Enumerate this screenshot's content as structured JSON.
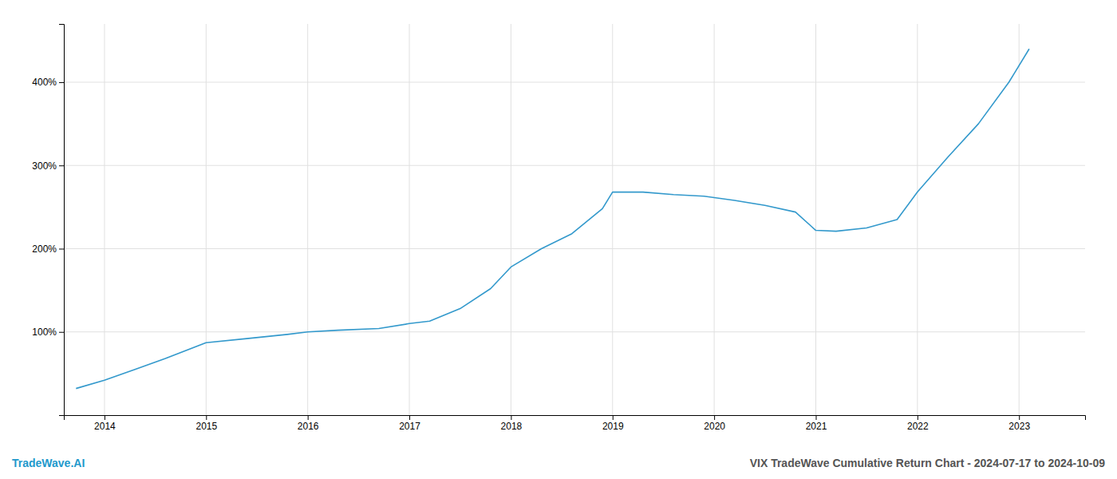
{
  "chart_data": {
    "type": "line",
    "title": "VIX TradeWave Cumulative Return Chart - 2024-07-17 to 2024-10-09",
    "annotations": [
      "TradeWave.AI"
    ],
    "x": [
      2013.72,
      2014.0,
      2014.3,
      2014.6,
      2015.0,
      2015.4,
      2015.8,
      2016.0,
      2016.3,
      2016.7,
      2017.0,
      2017.2,
      2017.5,
      2017.8,
      2018.0,
      2018.3,
      2018.6,
      2018.9,
      2019.0,
      2019.3,
      2019.6,
      2019.9,
      2020.2,
      2020.5,
      2020.8,
      2021.0,
      2021.2,
      2021.5,
      2021.8,
      2022.0,
      2022.3,
      2022.6,
      2022.9,
      2023.1
    ],
    "values": [
      32,
      42,
      55,
      68,
      87,
      92,
      97,
      100,
      102,
      104,
      110,
      113,
      128,
      152,
      178,
      200,
      218,
      248,
      268,
      268,
      265,
      263,
      258,
      252,
      244,
      222,
      221,
      225,
      235,
      268,
      310,
      350,
      400,
      440
    ],
    "color": "#3399cc",
    "xlim": [
      2013.6,
      2023.65
    ],
    "ylim": [
      0,
      470
    ],
    "xticks": [
      2014,
      2015,
      2016,
      2017,
      2018,
      2019,
      2020,
      2021,
      2022,
      2023
    ],
    "yticks": [
      {
        "value": 100,
        "label": "100%"
      },
      {
        "value": 200,
        "label": "200%"
      },
      {
        "value": 300,
        "label": "300%"
      },
      {
        "value": 400,
        "label": "400%"
      }
    ],
    "grid": true
  }
}
